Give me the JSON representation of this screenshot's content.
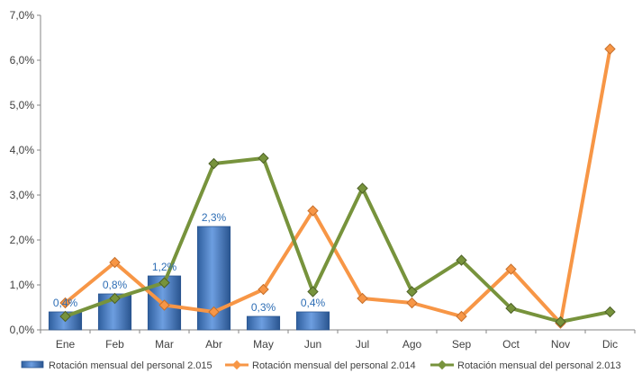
{
  "chart_data": {
    "type": "bar",
    "title": "",
    "xlabel": "",
    "ylabel": "",
    "ylim": [
      0,
      7
    ],
    "y_ticks": [
      "0,0%",
      "1,0%",
      "2,0%",
      "3,0%",
      "4,0%",
      "5,0%",
      "6,0%",
      "7,0%"
    ],
    "categories": [
      "Ene",
      "Feb",
      "Mar",
      "Abr",
      "May",
      "Jun",
      "Jul",
      "Ago",
      "Sep",
      "Oct",
      "Nov",
      "Dic"
    ],
    "grid": false,
    "legend_position": "bottom",
    "series": [
      {
        "name": "Rotación mensual del personal 2.015",
        "kind": "bar",
        "color": "#4a7ebb",
        "values": [
          0.4,
          0.8,
          1.2,
          2.3,
          0.3,
          0.4,
          null,
          null,
          null,
          null,
          null,
          null
        ],
        "data_labels": [
          "0,4%",
          "0,8%",
          "1,2%",
          "2,3%",
          "0,3%",
          "0,4%",
          null,
          null,
          null,
          null,
          null,
          null
        ]
      },
      {
        "name": "Rotación mensual del personal 2.014",
        "kind": "line",
        "color": "#f79646",
        "marker": "diamond",
        "values": [
          0.6,
          1.5,
          0.55,
          0.4,
          0.9,
          2.65,
          0.7,
          0.6,
          0.3,
          1.35,
          0.15,
          6.25
        ]
      },
      {
        "name": "Rotación mensual del personal 2.013",
        "kind": "line",
        "color": "#77933c",
        "marker": "diamond",
        "values": [
          0.3,
          0.7,
          1.05,
          3.7,
          3.82,
          0.85,
          3.15,
          0.85,
          1.55,
          0.48,
          0.18,
          0.4
        ]
      }
    ]
  }
}
